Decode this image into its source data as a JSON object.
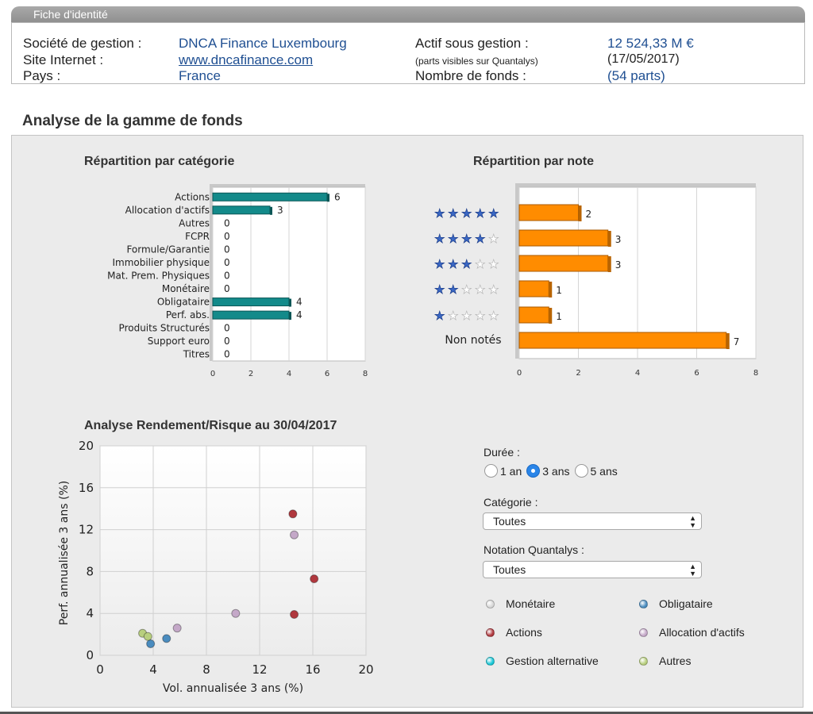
{
  "identity": {
    "header": "Fiche d'identité",
    "rows": [
      {
        "label": "Société de gestion :",
        "value": "DNCA Finance Luxembourg"
      },
      {
        "label": "Site Internet :",
        "value": "www.dncafinance.com"
      },
      {
        "label": "Pays :",
        "value": "France"
      }
    ],
    "aum_label": "Actif sous gestion :",
    "aum_value": "12 524,33 M €",
    "aum_note": "(parts visibles sur Quantalys)",
    "aum_date": "(17/05/2017)",
    "funds_label": "Nombre de fonds :",
    "funds_value": "(54 parts)"
  },
  "section_title": "Analyse de la gamme de fonds",
  "filters": {
    "duration_label": "Durée :",
    "durations": [
      "1 an",
      "3 ans",
      "5 ans"
    ],
    "selected_duration": "3 ans",
    "category_label": "Catégorie :",
    "category_value": "Toutes",
    "rating_label": "Notation Quantalys :",
    "rating_value": "Toutes"
  },
  "legend": [
    {
      "label": "Monétaire",
      "color": "#d8d8d8"
    },
    {
      "label": "Obligataire",
      "color": "#4a8cbf"
    },
    {
      "label": "Actions",
      "color": "#b0383e"
    },
    {
      "label": "Allocation d'actifs",
      "color": "#c4a8c8"
    },
    {
      "label": "Gestion alternative",
      "color": "#19c8d8"
    },
    {
      "label": "Autres",
      "color": "#b8cf7e"
    }
  ],
  "chart_data": [
    {
      "type": "bar",
      "orientation": "horizontal",
      "title": "Répartition par catégorie",
      "categories": [
        "Actions",
        "Allocation d'actifs",
        "Autres",
        "FCPR",
        "Formule/Garantie",
        "Immobilier physique",
        "Mat. Prem. Physiques",
        "Monétaire",
        "Obligataire",
        "Perf. abs.",
        "Produits Structurés",
        "Support euro",
        "Titres"
      ],
      "values": [
        6,
        3,
        0,
        0,
        0,
        0,
        0,
        0,
        4,
        4,
        0,
        0,
        0
      ],
      "xticks": [
        "0",
        "2",
        "4",
        "6",
        "8"
      ],
      "xlim": [
        0,
        8
      ],
      "color": "#138a8a",
      "grid": true
    },
    {
      "type": "bar",
      "orientation": "horizontal",
      "title": "Répartition par note",
      "categories": [
        "5 étoiles",
        "4 étoiles",
        "3 étoiles",
        "2 étoiles",
        "1 étoile",
        "Non notés"
      ],
      "stars": [
        5,
        4,
        3,
        2,
        1,
        0
      ],
      "text_label_last": "Non notés",
      "values": [
        2,
        3,
        3,
        1,
        1,
        7
      ],
      "xticks": [
        "0",
        "2",
        "4",
        "6",
        "8"
      ],
      "xlim": [
        0,
        8
      ],
      "color": "#ff8c00",
      "grid": true
    },
    {
      "type": "scatter",
      "title": "Analyse Rendement/Risque au 30/04/2017",
      "xlabel": "Vol. annualisée 3 ans (%)",
      "ylabel": "Perf. annualisée 3 ans (%)",
      "xlim": [
        0,
        20
      ],
      "ylim": [
        0,
        20
      ],
      "xticks": [
        "0",
        "4",
        "8",
        "12",
        "16",
        "20"
      ],
      "yticks": [
        "0",
        "4",
        "8",
        "12",
        "16",
        "20"
      ],
      "points": [
        {
          "x": 14.5,
          "y": 13.5,
          "series": "Actions"
        },
        {
          "x": 16.1,
          "y": 7.3,
          "series": "Actions"
        },
        {
          "x": 14.6,
          "y": 3.9,
          "series": "Actions"
        },
        {
          "x": 14.6,
          "y": 11.5,
          "series": "Allocation d'actifs"
        },
        {
          "x": 10.2,
          "y": 4.0,
          "series": "Allocation d'actifs"
        },
        {
          "x": 5.8,
          "y": 2.6,
          "series": "Allocation d'actifs"
        },
        {
          "x": 5.0,
          "y": 1.6,
          "series": "Obligataire"
        },
        {
          "x": 3.8,
          "y": 1.1,
          "series": "Obligataire"
        },
        {
          "x": 3.2,
          "y": 2.1,
          "series": "Autres"
        },
        {
          "x": 3.6,
          "y": 1.8,
          "series": "Autres"
        }
      ]
    }
  ]
}
